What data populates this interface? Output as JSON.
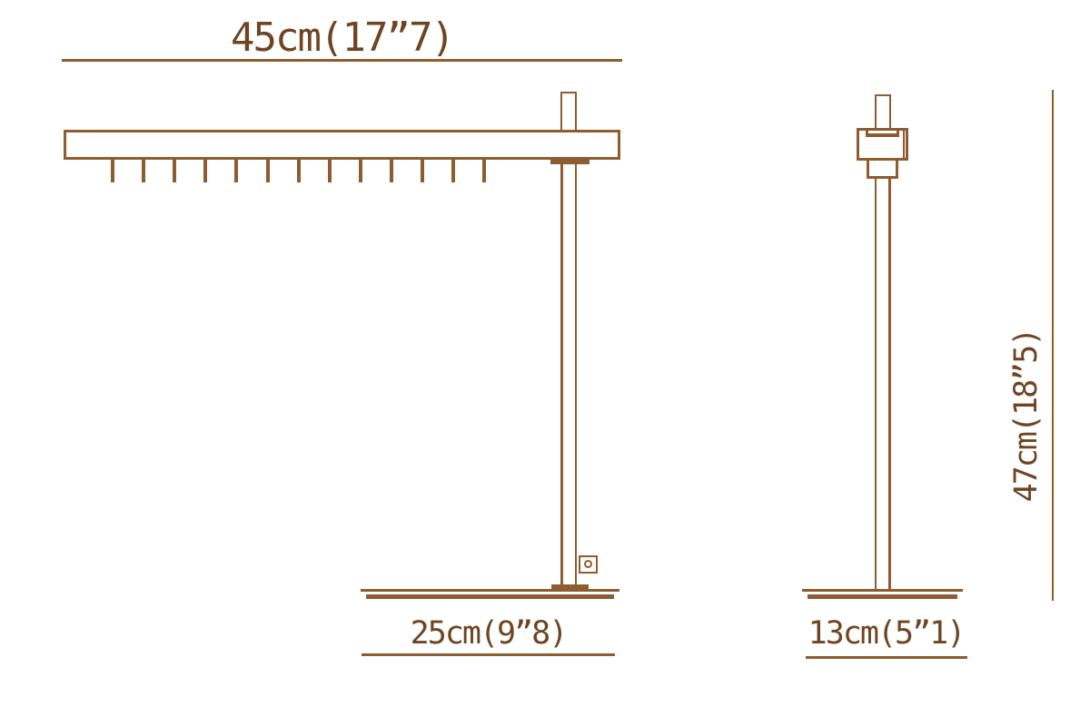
{
  "diagram": {
    "type": "product-dimension-drawing",
    "subject": "desk-lamp-two-views",
    "colors": {
      "line": "#8d5c30",
      "text": "#6e4423",
      "background": "#ffffff"
    },
    "front_view": {
      "top_width_label": "45cm(17”7)",
      "base_width_label": "25cm(9”8)",
      "fin_count": 13
    },
    "side_view": {
      "height_label": "47cm(18”5)",
      "base_depth_label": "13cm(5”1)"
    }
  }
}
